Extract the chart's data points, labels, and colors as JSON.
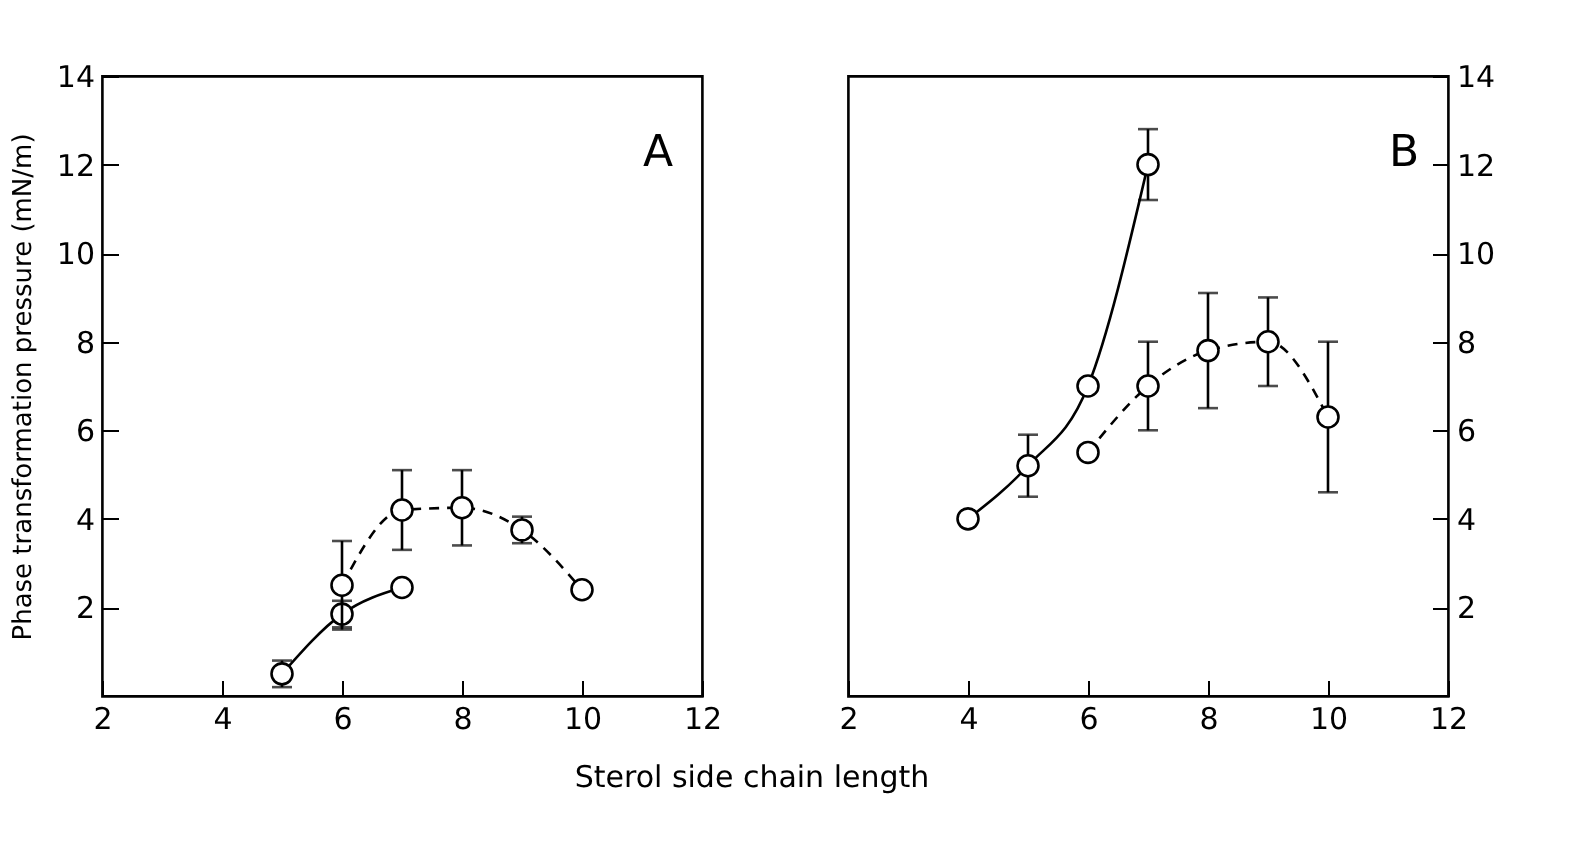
{
  "chart_data": [
    {
      "type": "line",
      "ylabel": "Phase transformation pressure (mN/m)",
      "xlabel": "Sterol side chain length",
      "annotations": [
        "A"
      ],
      "marker": "circle",
      "grid": false,
      "xlim": [
        2,
        12
      ],
      "xticks": [
        2,
        4,
        6,
        8,
        10,
        12
      ],
      "ylim": [
        0,
        14
      ],
      "yticks": [
        2,
        4,
        6,
        8,
        10,
        12,
        14
      ],
      "series": [
        {
          "color": "#000000",
          "line_style": "solid",
          "x": [
            5,
            6,
            7
          ],
          "values": [
            0.5,
            1.85,
            2.45
          ],
          "errors": [
            0.3,
            0.3,
            null
          ]
        },
        {
          "color": "#000000",
          "line_style": "dashed",
          "x": [
            6,
            7,
            8,
            9,
            10
          ],
          "values": [
            2.5,
            4.2,
            4.25,
            3.75,
            2.4
          ],
          "errors": [
            1.0,
            0.9,
            0.85,
            0.3,
            null
          ]
        }
      ]
    },
    {
      "type": "line",
      "annotations": [
        "B"
      ],
      "marker": "circle",
      "grid": false,
      "xlim": [
        2,
        12
      ],
      "xticks": [
        2,
        4,
        6,
        8,
        10,
        12
      ],
      "ylim": [
        0,
        14
      ],
      "yticks": [
        2,
        4,
        6,
        8,
        10,
        12,
        14
      ],
      "series": [
        {
          "color": "#000000",
          "line_style": "solid",
          "x": [
            4,
            5,
            6,
            7
          ],
          "values": [
            4.0,
            5.2,
            7.0,
            12.0
          ],
          "errors": [
            null,
            0.7,
            null,
            0.8
          ]
        },
        {
          "color": "#000000",
          "line_style": "dashed",
          "x": [
            6,
            7,
            8,
            9,
            10
          ],
          "values": [
            5.5,
            7.0,
            7.8,
            8.0,
            6.3
          ],
          "errors": [
            null,
            1.0,
            1.3,
            1.0,
            1.7
          ]
        }
      ]
    }
  ]
}
